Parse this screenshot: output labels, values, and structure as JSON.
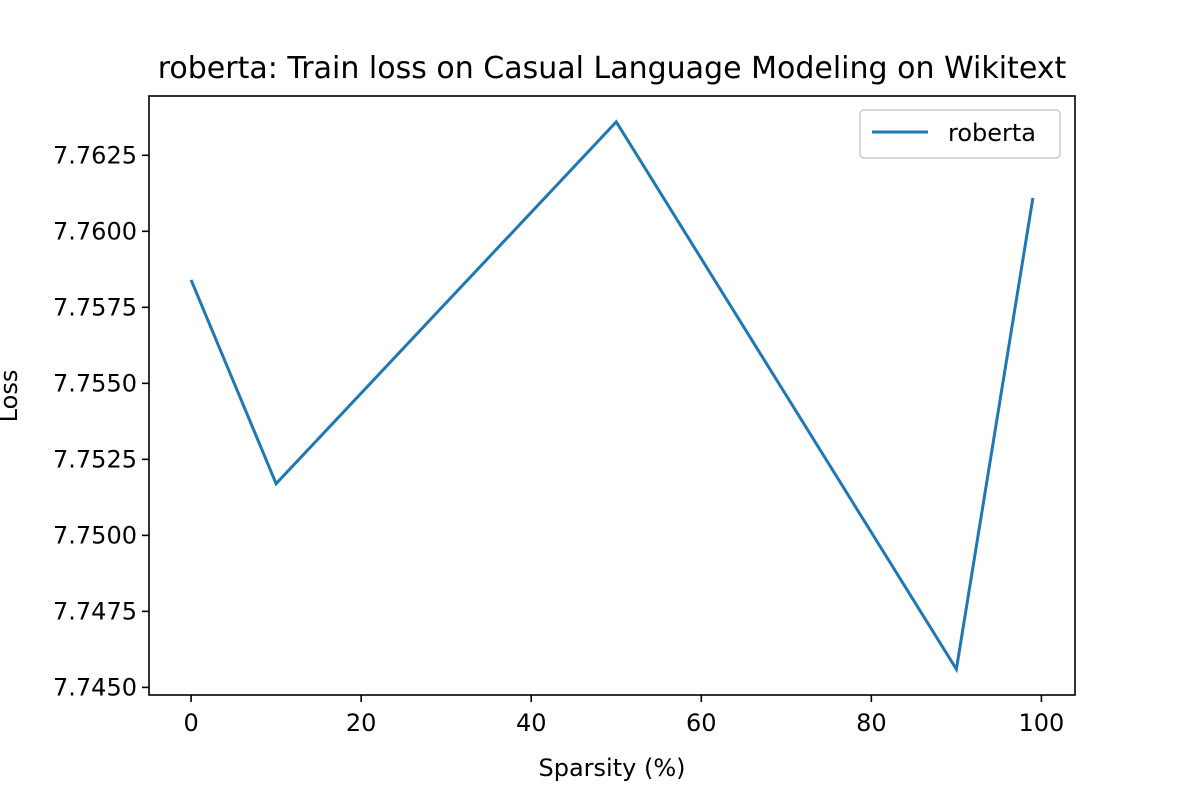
{
  "chart_data": {
    "type": "line",
    "title": "roberta: Train loss on Casual Language Modeling on Wikitext",
    "xlabel": "Sparsity (%)",
    "ylabel": "Loss",
    "x": [
      0,
      10,
      50,
      90,
      99
    ],
    "series": [
      {
        "name": "roberta",
        "values": [
          7.7584,
          7.7517,
          7.7636,
          7.7456,
          7.7611
        ]
      }
    ],
    "xlim": [
      -4.95,
      103.95
    ],
    "ylim": [
      7.74475,
      7.76445
    ],
    "xticks": [
      0,
      20,
      40,
      60,
      80,
      100
    ],
    "xtick_labels": [
      "0",
      "20",
      "40",
      "60",
      "80",
      "100"
    ],
    "yticks": [
      7.745,
      7.7475,
      7.75,
      7.7525,
      7.755,
      7.7575,
      7.76,
      7.7625
    ],
    "ytick_labels": [
      "7.7450",
      "7.7475",
      "7.7500",
      "7.7525",
      "7.7550",
      "7.7575",
      "7.7600",
      "7.7625"
    ],
    "grid": false,
    "legend_position": "top-right",
    "colors": {
      "series": "#1f77b4"
    }
  }
}
